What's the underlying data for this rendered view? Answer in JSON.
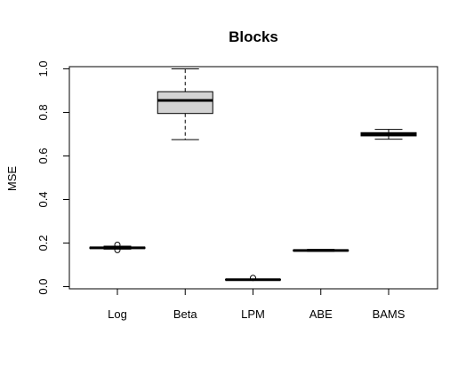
{
  "chart_data": {
    "type": "boxplot",
    "title": "Blocks",
    "xlabel": "",
    "ylabel": "MSE",
    "ylim": [
      -0.01,
      1.01
    ],
    "yticks": [
      0.0,
      0.2,
      0.4,
      0.6,
      0.8,
      1.0
    ],
    "ytick_labels": [
      "0.0",
      "0.2",
      "0.4",
      "0.6",
      "0.8",
      "1.0"
    ],
    "categories": [
      "Log",
      "Beta",
      "LPM",
      "ABE",
      "BAMS"
    ],
    "box_fill": "#d3d3d3",
    "boxes": [
      {
        "label": "Log",
        "whisker_low": 0.172,
        "q1": 0.175,
        "median": 0.178,
        "q3": 0.181,
        "whisker_high": 0.186,
        "outliers": [
          0.168,
          0.192
        ]
      },
      {
        "label": "Beta",
        "whisker_low": 0.675,
        "q1": 0.795,
        "median": 0.855,
        "q3": 0.895,
        "whisker_high": 1.0,
        "outliers": []
      },
      {
        "label": "LPM",
        "whisker_low": 0.03,
        "q1": 0.031,
        "median": 0.032,
        "q3": 0.033,
        "whisker_high": 0.034,
        "outliers": [
          0.04
        ]
      },
      {
        "label": "ABE",
        "whisker_low": 0.162,
        "q1": 0.164,
        "median": 0.166,
        "q3": 0.168,
        "whisker_high": 0.171,
        "outliers": []
      },
      {
        "label": "BAMS",
        "whisker_low": 0.677,
        "q1": 0.692,
        "median": 0.7,
        "q3": 0.707,
        "whisker_high": 0.722,
        "outliers": []
      }
    ]
  }
}
